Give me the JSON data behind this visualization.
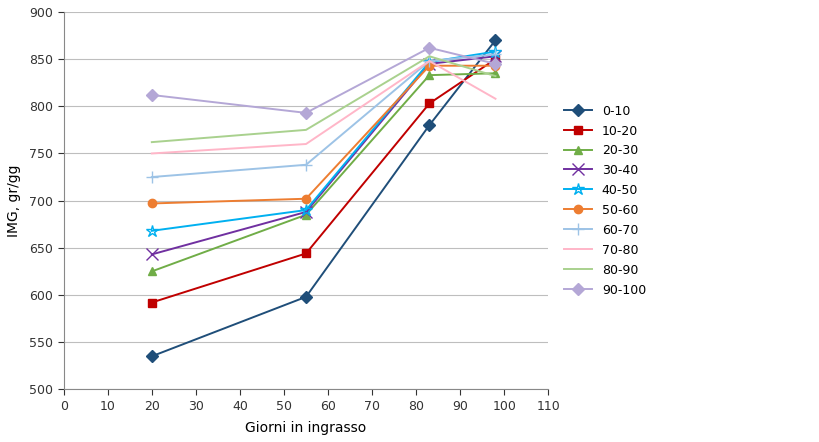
{
  "series": [
    {
      "label": "0-10",
      "color": "#1F4E79",
      "marker": "D",
      "x": [
        20,
        55,
        83,
        98
      ],
      "y": [
        535,
        598,
        780,
        870
      ]
    },
    {
      "label": "10-20",
      "color": "#C00000",
      "marker": "s",
      "x": [
        20,
        55,
        83,
        98
      ],
      "y": [
        592,
        644,
        803,
        850
      ]
    },
    {
      "label": "20-30",
      "color": "#70AD47",
      "marker": "^",
      "x": [
        20,
        55,
        83,
        98
      ],
      "y": [
        625,
        685,
        833,
        835
      ]
    },
    {
      "label": "30-40",
      "color": "#7030A0",
      "marker": "x",
      "x": [
        20,
        55,
        83,
        98
      ],
      "y": [
        643,
        688,
        845,
        853
      ]
    },
    {
      "label": "40-50",
      "color": "#00B0F0",
      "marker": "*",
      "x": [
        20,
        55,
        83,
        98
      ],
      "y": [
        668,
        690,
        847,
        858
      ]
    },
    {
      "label": "50-60",
      "color": "#ED7D31",
      "marker": "o",
      "x": [
        20,
        55,
        83,
        98
      ],
      "y": [
        697,
        702,
        843,
        843
      ]
    },
    {
      "label": "60-70",
      "color": "#9DC3E6",
      "marker": "+",
      "x": [
        20,
        55,
        83,
        98
      ],
      "y": [
        725,
        738,
        848,
        855
      ]
    },
    {
      "label": "70-80",
      "color": "#FFB6C8",
      "marker": "none",
      "x": [
        20,
        55,
        83,
        98
      ],
      "y": [
        750,
        760,
        848,
        808
      ]
    },
    {
      "label": "80-90",
      "color": "#A9D18E",
      "marker": "none",
      "x": [
        20,
        55,
        83,
        98
      ],
      "y": [
        762,
        775,
        853,
        832
      ]
    },
    {
      "label": "90-100",
      "color": "#B4A7D6",
      "marker": "D",
      "x": [
        20,
        55,
        83,
        98
      ],
      "y": [
        812,
        793,
        862,
        845
      ]
    }
  ],
  "xlabel": "Giorni in ingrasso",
  "ylabel": "IMG, gr/gg",
  "xlim": [
    0,
    110
  ],
  "ylim": [
    500,
    900
  ],
  "xticks": [
    0,
    10,
    20,
    30,
    40,
    50,
    60,
    70,
    80,
    90,
    100,
    110
  ],
  "yticks": [
    500,
    550,
    600,
    650,
    700,
    750,
    800,
    850,
    900
  ],
  "bg_color": "#FFFFFF",
  "grid_color": "#BEBEBE",
  "figsize": [
    8.2,
    4.42
  ],
  "dpi": 100
}
